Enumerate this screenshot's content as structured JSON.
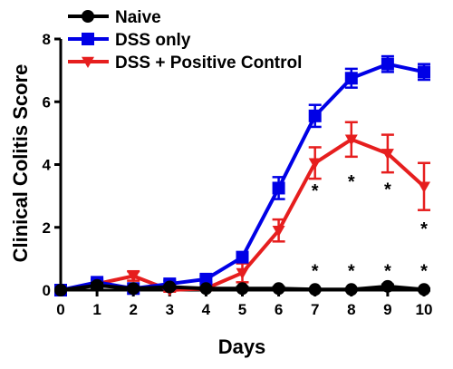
{
  "chart_data": {
    "type": "line",
    "title": "",
    "xlabel": "Days",
    "ylabel": "Clinical Colitis Score",
    "xlim": [
      0,
      10
    ],
    "ylim": [
      0,
      8
    ],
    "xticks": [
      "0",
      "1",
      "2",
      "3",
      "4",
      "5",
      "6",
      "7",
      "8",
      "9",
      "10"
    ],
    "yticks": [
      "0",
      "2",
      "4",
      "6",
      "8"
    ],
    "grid": false,
    "legend_position": "top-left",
    "x": [
      0,
      1,
      2,
      3,
      4,
      5,
      6,
      7,
      8,
      9,
      10
    ],
    "series": [
      {
        "name": "Naive",
        "color": "#000000",
        "marker": "circle",
        "values": [
          0,
          0.15,
          0.05,
          0.1,
          0.05,
          0.05,
          0.05,
          0.02,
          0.02,
          0.12,
          0.02
        ],
        "errors": [
          0,
          0.08,
          0.05,
          0.05,
          0.05,
          0.05,
          0.05,
          0.03,
          0.03,
          0.06,
          0.03
        ]
      },
      {
        "name": "DSS only",
        "color": "#0000e6",
        "marker": "square",
        "values": [
          0,
          0.25,
          0.05,
          0.2,
          0.35,
          1.05,
          3.25,
          5.55,
          6.75,
          7.2,
          6.95
        ],
        "errors": [
          0,
          0.1,
          0.05,
          0.1,
          0.1,
          0.1,
          0.35,
          0.35,
          0.3,
          0.25,
          0.25
        ]
      },
      {
        "name": "DSS + Positive Control",
        "color": "#e61e1e",
        "marker": "triangle-down",
        "values": [
          0,
          0.2,
          0.45,
          0,
          0.05,
          0.55,
          1.9,
          4.05,
          4.8,
          4.35,
          3.3
        ],
        "errors": [
          0,
          0.1,
          0.15,
          0.05,
          0.05,
          0.3,
          0.35,
          0.5,
          0.55,
          0.6,
          0.75
        ]
      }
    ],
    "annotations": {
      "upper": {
        "text": "*",
        "x": [
          7,
          8,
          9,
          10
        ],
        "y": [
          3.2,
          3.5,
          3.25,
          2.0
        ]
      },
      "lower": {
        "text": "*",
        "x": [
          7,
          8,
          9,
          10
        ],
        "y": [
          0.65,
          0.65,
          0.65,
          0.65
        ]
      }
    }
  }
}
